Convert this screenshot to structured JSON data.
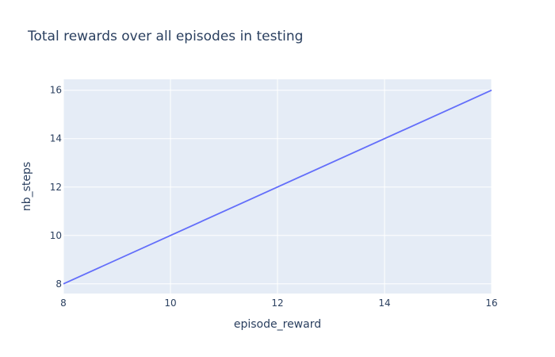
{
  "chart_data": {
    "type": "line",
    "title": "Total rewards over all episodes in testing",
    "xlabel": "episode_reward",
    "ylabel": "nb_steps",
    "xlim": [
      8,
      16
    ],
    "ylim": [
      7.6,
      16.45
    ],
    "x_ticks": [
      8,
      10,
      12,
      14,
      16
    ],
    "y_ticks": [
      8,
      10,
      12,
      14,
      16
    ],
    "grid": true,
    "series": [
      {
        "name": "nb_steps",
        "x": [
          8,
          16
        ],
        "y": [
          8,
          16
        ],
        "color": "#636efa"
      }
    ]
  },
  "colors": {
    "plot_background": "#e5ecf6",
    "text": "#2a3f5f",
    "grid": "#ffffff"
  }
}
